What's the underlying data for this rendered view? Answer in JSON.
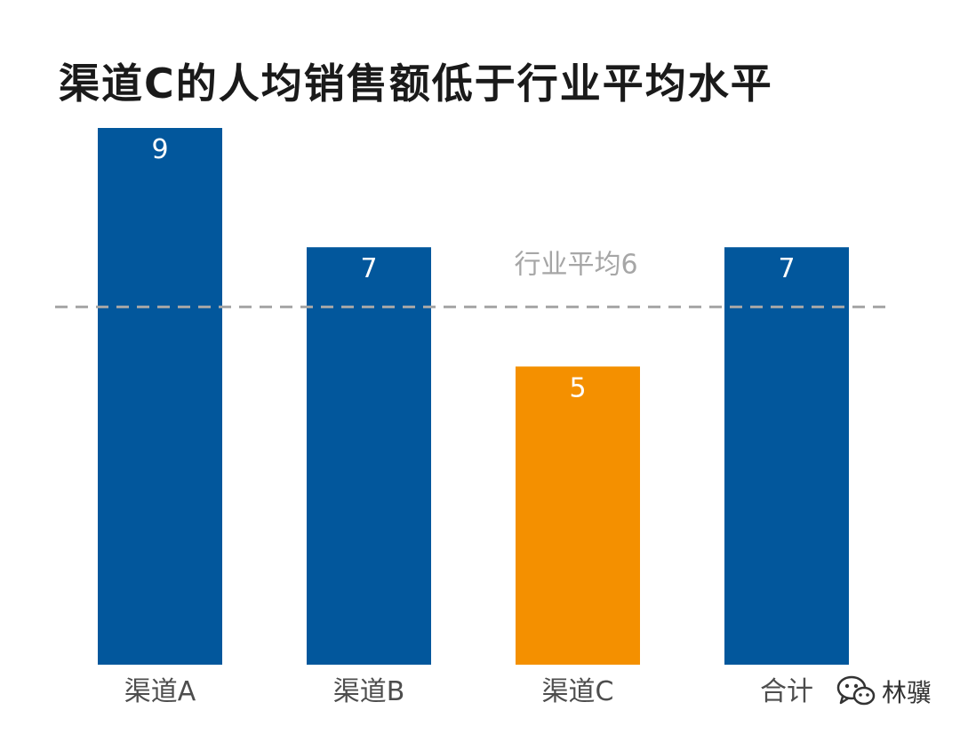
{
  "chart_data": {
    "type": "bar",
    "title": "渠道C的人均销售额低于行业平均水平",
    "categories": [
      "渠道A",
      "渠道B",
      "渠道C",
      "合计"
    ],
    "values": [
      9,
      7,
      5,
      7
    ],
    "highlight_category": "渠道C",
    "colors": {
      "bar": "#02579c",
      "highlight": "#f49000",
      "reference_line": "#a6a6a6"
    },
    "ylim": [
      0,
      9
    ],
    "grid": false,
    "reference_line": {
      "label": "行业平均6",
      "value": 6
    }
  },
  "watermark": {
    "text": "林骥",
    "icon": "wechat-icon"
  }
}
